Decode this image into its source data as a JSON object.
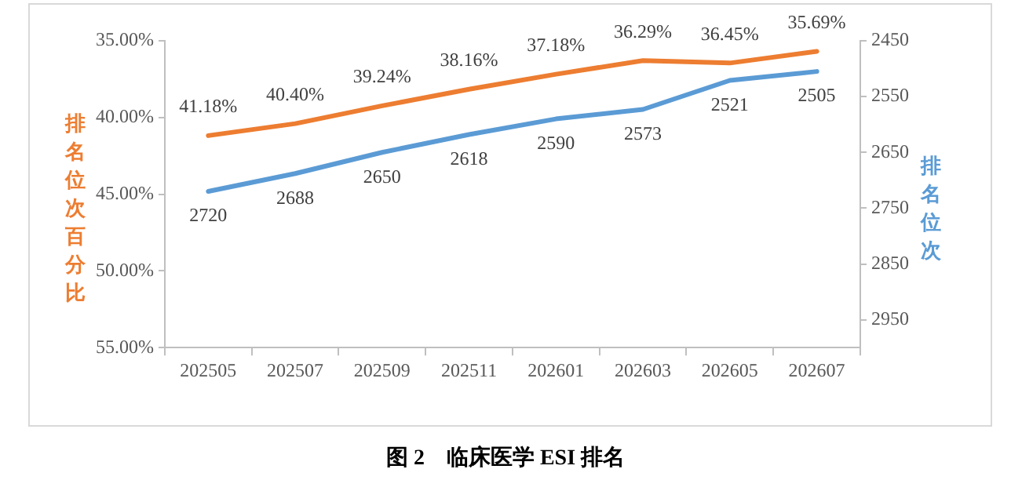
{
  "chart_data": {
    "type": "line",
    "title": "图 2　临床医学 ESI 排名",
    "ylabel": "排名位次百分比",
    "y2label": "排名位次",
    "categories": [
      "202505",
      "202507",
      "202509",
      "202511",
      "202601",
      "202603",
      "202605",
      "202607"
    ],
    "series": [
      {
        "color": "#ed7d31",
        "values": [
          41.18,
          40.4,
          39.24,
          38.16,
          37.18,
          36.29,
          36.45,
          35.69
        ],
        "value_labels": [
          "41.18%",
          "40.40%",
          "39.24%",
          "38.16%",
          "37.18%",
          "36.29%",
          "36.45%",
          "35.69%"
        ]
      },
      {
        "color": "#5b9bd5",
        "axis": "y2",
        "values": [
          2720,
          2688,
          2650,
          2618,
          2590,
          2573,
          2521,
          2505
        ],
        "value_labels": [
          "2720",
          "2688",
          "2650",
          "2618",
          "2590",
          "2573",
          "2521",
          "2505"
        ]
      }
    ],
    "ylim": [
      55,
      35
    ],
    "yticks": [
      {
        "value": 35,
        "label": "35.00%"
      },
      {
        "value": 40,
        "label": "40.00%"
      },
      {
        "value": 45,
        "label": "45.00%"
      },
      {
        "value": 50,
        "label": "50.00%"
      },
      {
        "value": 55,
        "label": "55.00%"
      }
    ],
    "y2lim": [
      3000,
      2450
    ],
    "y2ticks": [
      2450,
      2550,
      2650,
      2750,
      2850,
      2950
    ],
    "grid": false,
    "legend": false,
    "marker": "none",
    "line_style": "solid"
  }
}
